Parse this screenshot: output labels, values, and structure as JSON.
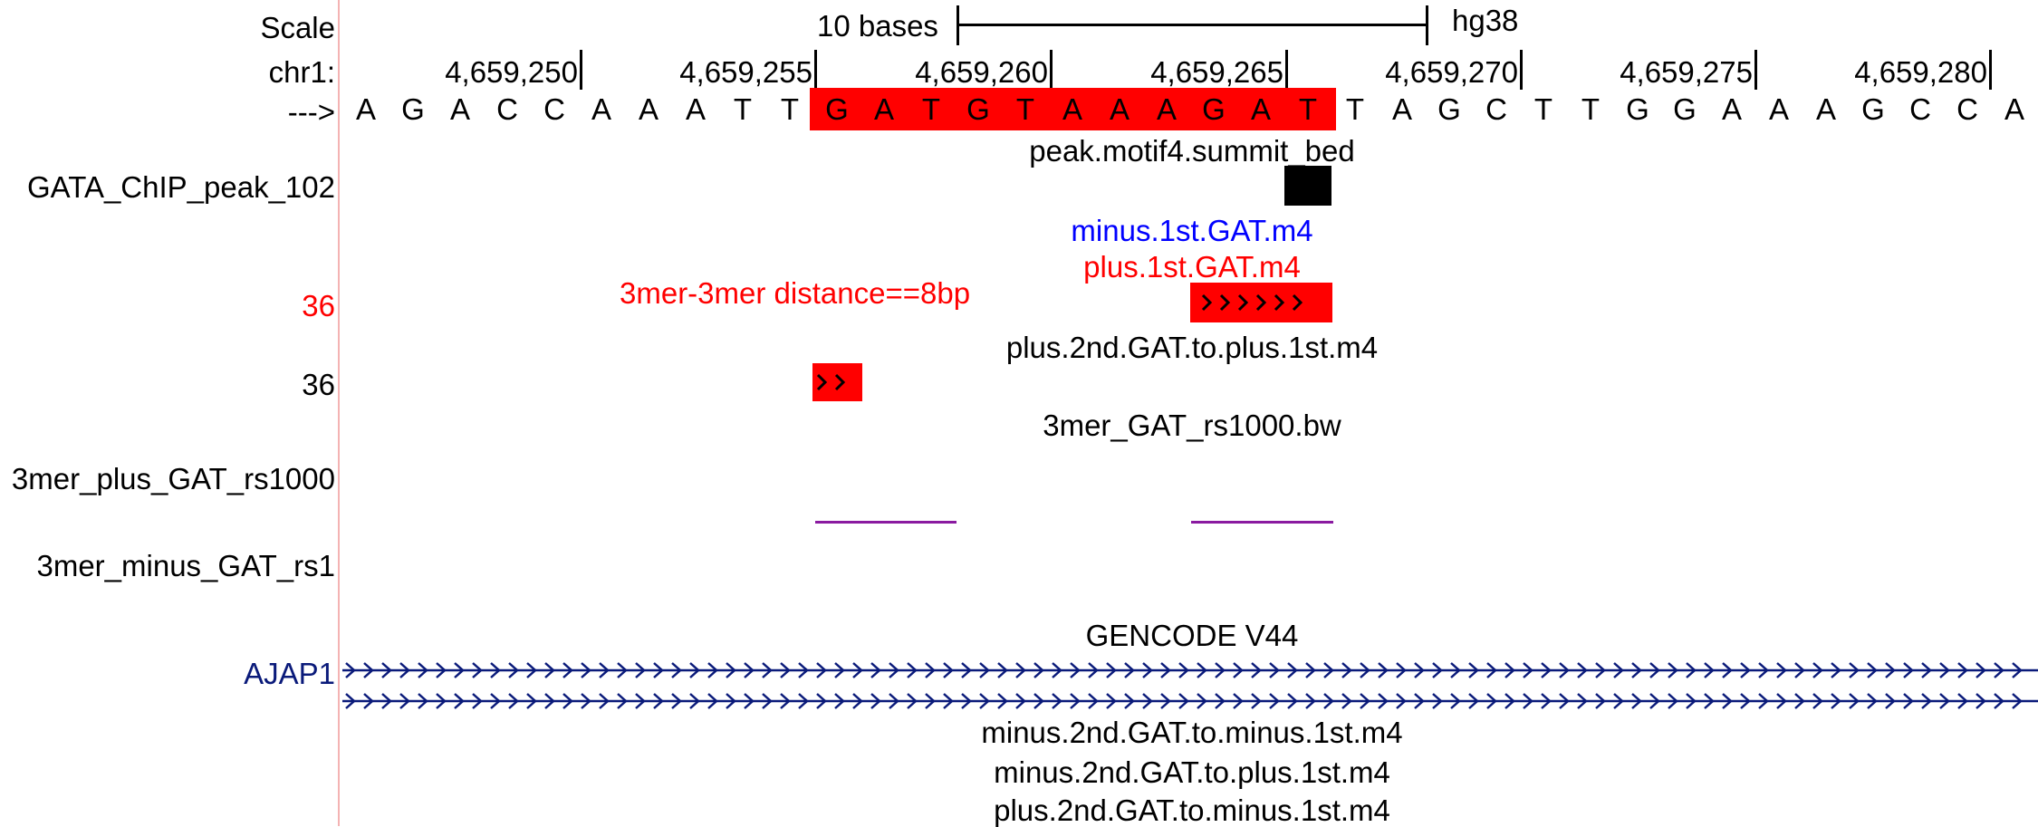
{
  "left_labels": {
    "scale": "Scale",
    "chr": "chr1:",
    "arrow": "--->",
    "peak_track": "GATA_ChIP_peak_102",
    "score_red": "36",
    "score_black": "36",
    "plus_track": "3mer_plus_GAT_rs1000",
    "minus_track": "3mer_minus_GAT_rs1",
    "gene": "AJAP1"
  },
  "scale_bar": {
    "label": "10 bases",
    "assembly": "hg38"
  },
  "ruler": {
    "positions": [
      "4,659,250",
      "4,659,255",
      "4,659,260",
      "4,659,265",
      "4,659,270",
      "4,659,275",
      "4,659,280"
    ]
  },
  "sequence": {
    "bases": [
      "A",
      "G",
      "A",
      "C",
      "C",
      "A",
      "A",
      "A",
      "T",
      "T",
      "G",
      "A",
      "T",
      "G",
      "T",
      "A",
      "A",
      "A",
      "G",
      "A",
      "T",
      "T",
      "A",
      "G",
      "C",
      "T",
      "T",
      "G",
      "G",
      "A",
      "A",
      "A",
      "G",
      "C",
      "C",
      "A"
    ],
    "highlight": {
      "start_index": 10,
      "end_index": 20,
      "color": "#ff0000"
    }
  },
  "track_titles": {
    "summit": "peak.motif4.summit_bed",
    "minus_1st": "minus.1st.GAT.m4",
    "plus_1st": "plus.1st.GAT.m4",
    "distance_note": "3mer-3mer distance==8bp",
    "plus2_to_plus1": "plus.2nd.GAT.to.plus.1st.m4",
    "bw": "3mer_GAT_rs1000.bw",
    "gencode": "GENCODE V44",
    "minus2_to_minus1": "minus.2nd.GAT.to.minus.1st.m4",
    "minus2_to_plus1": "minus.2nd.GAT.to.plus.1st.m4",
    "plus2_to_minus1": "plus.2nd.GAT.to.minus.1st.m4"
  },
  "colors": {
    "red": "#ff0000",
    "blue": "#0000ff",
    "navy": "#0a1a7a",
    "purple": "#8a1aa0",
    "gutter": "#f4b3b3"
  },
  "icons": {
    "strand": "right-chevron-icon"
  }
}
